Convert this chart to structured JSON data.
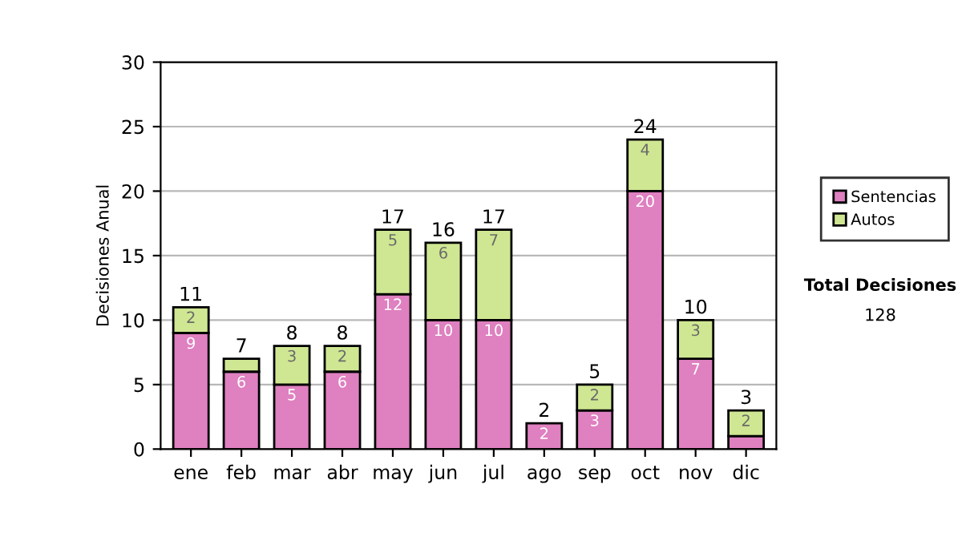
{
  "chart_data": {
    "type": "bar",
    "stacked": true,
    "ylabel": "Decisiones Anual",
    "categories": [
      "ene",
      "feb",
      "mar",
      "abr",
      "may",
      "jun",
      "jul",
      "ago",
      "sep",
      "oct",
      "nov",
      "dic"
    ],
    "series": [
      {
        "name": "Sentencias",
        "color": "#df80c0",
        "values": [
          9,
          6,
          5,
          6,
          12,
          10,
          10,
          2,
          3,
          20,
          7,
          1
        ],
        "value_labels": [
          "9",
          "6",
          "5",
          "6",
          "12",
          "10",
          "10",
          "2",
          "3",
          "20",
          "7",
          null
        ]
      },
      {
        "name": "Autos",
        "color": "#cfe792",
        "values": [
          2,
          1,
          3,
          2,
          5,
          6,
          7,
          null,
          2,
          4,
          3,
          2
        ],
        "value_labels": [
          "2",
          null,
          "3",
          "2",
          "5",
          "6",
          "7",
          null,
          "2",
          "4",
          "3",
          "2"
        ]
      }
    ],
    "totals": [
      "11",
      "7",
      "8",
      "8",
      "17",
      "16",
      "17",
      "2",
      "5",
      "24",
      "10",
      "3"
    ],
    "ylim": [
      0,
      30
    ],
    "yticks": [
      0,
      5,
      10,
      15,
      20,
      25,
      30
    ],
    "grid": "y",
    "legend": "right",
    "annotations": [
      "Total Decisiones",
      "128"
    ]
  }
}
